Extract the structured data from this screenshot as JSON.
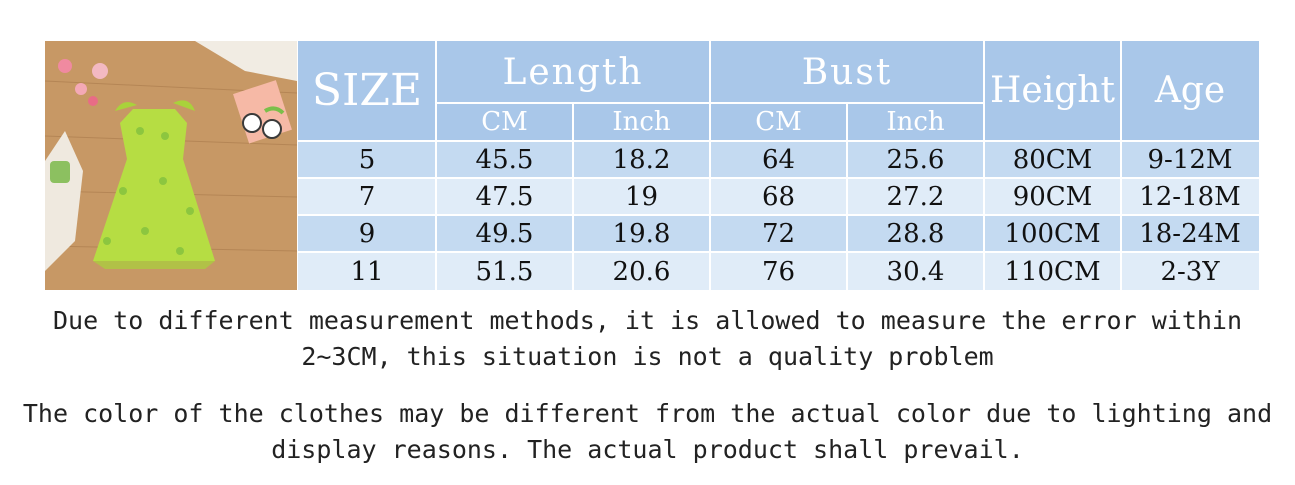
{
  "table": {
    "headers": {
      "size": "SIZE",
      "length": "Length",
      "bust": "Bust",
      "height": "Height",
      "age": "Age",
      "length_cm": "CM",
      "length_inch": "Inch",
      "bust_cm": "CM",
      "bust_inch": "Inch"
    },
    "rows": [
      {
        "size": "5",
        "length_cm": "45.5",
        "length_inch": "18.2",
        "bust_cm": "64",
        "bust_inch": "25.6",
        "height": "80CM",
        "age": "9-12M"
      },
      {
        "size": "7",
        "length_cm": "47.5",
        "length_inch": "19",
        "bust_cm": "68",
        "bust_inch": "27.2",
        "height": "90CM",
        "age": "12-18M"
      },
      {
        "size": "9",
        "length_cm": "49.5",
        "length_inch": "19.8",
        "bust_cm": "72",
        "bust_inch": "28.8",
        "height": "100CM",
        "age": "18-24M"
      },
      {
        "size": "11",
        "length_cm": "51.5",
        "length_inch": "20.6",
        "bust_cm": "76",
        "bust_inch": "30.4",
        "height": "110CM",
        "age": "2-3Y"
      }
    ]
  },
  "notes": {
    "measurement_line1": "Due to different measurement methods, it is allowed to measure the error within",
    "measurement_line2": "2~3CM, this situation is not a quality problem",
    "color_line1": "The color of the clothes may be different from the actual color due to lighting and",
    "color_line2": "display reasons. The actual product shall prevail."
  },
  "colors": {
    "header_bg": "#a9c7e9",
    "row_dark": "#c4daf1",
    "row_light": "#e0ecf8",
    "dress_green": "#b6dd43"
  }
}
